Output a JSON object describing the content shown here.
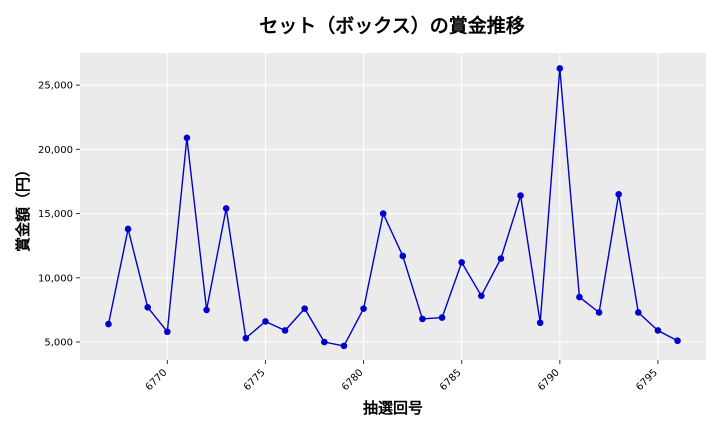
{
  "chart_data": {
    "type": "line",
    "title": "セット（ボックス）の賞金推移",
    "xlabel": "抽選回号",
    "ylabel": "賞金額（円）",
    "xlim": [
      6765.55,
      6797.45
    ],
    "ylim": [
      3600,
      27500
    ],
    "xticks": [
      6770,
      6775,
      6780,
      6785,
      6790,
      6795
    ],
    "xtick_labels": [
      "6770",
      "6775",
      "6780",
      "6785",
      "6790",
      "6795"
    ],
    "yticks": [
      5000,
      10000,
      15000,
      20000,
      25000
    ],
    "ytick_labels": [
      "5,000",
      "10,000",
      "15,000",
      "20,000",
      "25,000"
    ],
    "grid": true,
    "series": [
      {
        "color": "#0000cc",
        "x": [
          6767,
          6768,
          6769,
          6770,
          6771,
          6772,
          6773,
          6774,
          6775,
          6776,
          6777,
          6778,
          6779,
          6780,
          6781,
          6782,
          6783,
          6784,
          6785,
          6786,
          6787,
          6788,
          6789,
          6790,
          6791,
          6792,
          6793,
          6794,
          6795,
          6796
        ],
        "values": [
          6400,
          13800,
          7700,
          5800,
          20900,
          7500,
          15400,
          5300,
          6600,
          5900,
          7600,
          5000,
          4700,
          7600,
          15000,
          11700,
          6800,
          6900,
          11200,
          8600,
          11500,
          16400,
          6500,
          26300,
          8500,
          7300,
          16500,
          7300,
          5900,
          5100
        ]
      }
    ]
  }
}
